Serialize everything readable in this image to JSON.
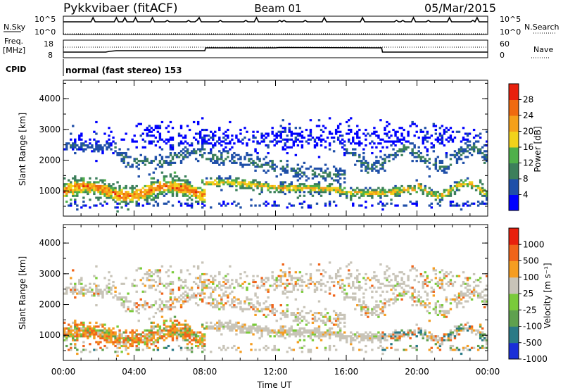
{
  "header": {
    "station": "Pykkvibaer (fitACF)",
    "beam": "Beam 01",
    "date": "05/Mar/2015"
  },
  "strips": {
    "nsky_label": "N.Sky",
    "nsky_ticks": [
      "10^5",
      "10^0"
    ],
    "nsearch_label": "N.Search",
    "freq_label_1": "Freq.",
    "freq_label_2": "[MHz]",
    "freq_ticks": [
      "18",
      "8"
    ],
    "nave_label": "Nave",
    "nave_ticks": [
      "60",
      "0"
    ],
    "cpid_label": "CPID",
    "cpid_text": "normal (fast stereo) 153"
  },
  "colors": {
    "power_scale": [
      "#0000ff",
      "#1f4fa8",
      "#3c7f5b",
      "#4fb04a",
      "#f2d21b",
      "#f5a01a",
      "#f06a0f",
      "#e8200d"
    ],
    "velocity_scale": [
      "#1a2fd8",
      "#2a7a86",
      "#5fa14e",
      "#7acb3a",
      "#c8c4b8",
      "#f59d21",
      "#f0641a",
      "#e8200d"
    ]
  },
  "chart_data": [
    {
      "type": "heatmap",
      "title": "",
      "xlabel": "",
      "ylabel": "Slant Range [km]",
      "x_ticks": [
        "00:00",
        "04:00",
        "08:00",
        "12:00",
        "16:00",
        "20:00",
        "00:00"
      ],
      "y_ticks": [
        "1000",
        "2000",
        "3000",
        "4000"
      ],
      "xlim_hours": [
        0,
        24
      ],
      "ylim": [
        180,
        4600
      ],
      "colorbar": {
        "label": "Power [dB]",
        "ticks": [
          "28",
          "24",
          "20",
          "16",
          "12",
          "8",
          "4"
        ],
        "range": [
          0,
          32
        ]
      }
    },
    {
      "type": "heatmap",
      "title": "",
      "xlabel": "Time UT",
      "ylabel": "Slant Range [km]",
      "x_ticks": [
        "00:00",
        "04:00",
        "08:00",
        "12:00",
        "16:00",
        "20:00",
        "00:00"
      ],
      "y_ticks": [
        "1000",
        "2000",
        "3000",
        "4000"
      ],
      "xlim_hours": [
        0,
        24
      ],
      "ylim": [
        180,
        4600
      ],
      "colorbar": {
        "label": "Velocity [m s⁻¹]",
        "ticks": [
          "1000",
          "500",
          "100",
          "25",
          "-25",
          "-100",
          "-500",
          "-1000"
        ]
      }
    }
  ]
}
